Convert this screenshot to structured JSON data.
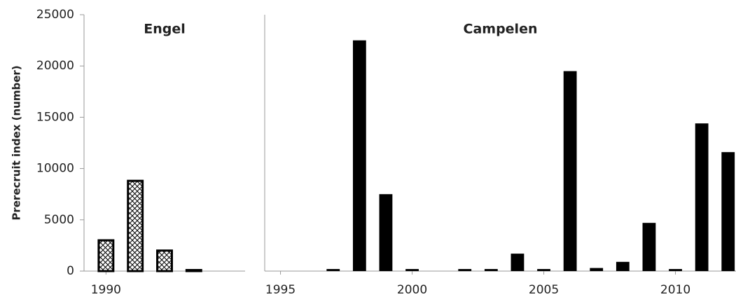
{
  "chart_data": [
    {
      "type": "bar",
      "title": "Engel",
      "y_label": "Prerecruit index (number)",
      "x": [
        1990,
        1991,
        1992,
        1993
      ],
      "values": [
        3000,
        8800,
        2000,
        100
      ],
      "color": "#000000",
      "pattern": "crosshatch",
      "xlim": [
        1989.25,
        1994.75
      ],
      "xticks": [
        1990
      ],
      "ylim": [
        0,
        25000
      ],
      "yticks": [
        0,
        5000,
        10000,
        15000,
        20000,
        25000
      ]
    },
    {
      "type": "bar",
      "title": "Campelen",
      "x": [
        1997,
        1998,
        1999,
        2000,
        2002,
        2003,
        2004,
        2005,
        2006,
        2007,
        2008,
        2009,
        2010,
        2011,
        2012
      ],
      "values": [
        200,
        22500,
        7500,
        200,
        200,
        200,
        1700,
        200,
        19500,
        300,
        900,
        4700,
        200,
        14400,
        11600
      ],
      "color": "#000000",
      "xlim": [
        1994.4,
        2012.3
      ],
      "xticks": [
        1995,
        2000,
        2005,
        2010
      ],
      "ylim": [
        0,
        25000
      ]
    }
  ]
}
